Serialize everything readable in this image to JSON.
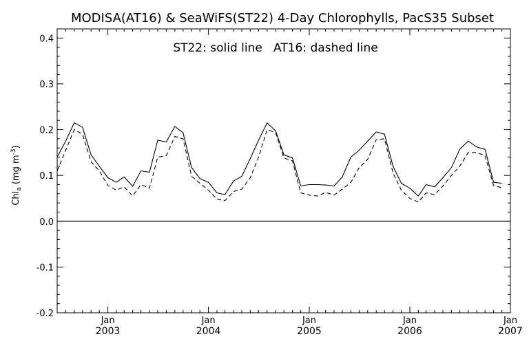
{
  "chart_data": {
    "type": "line",
    "title": "MODISA(AT16) & SeaWiFS(ST22) 4-Day Chlorophylls, PacS35 Subset",
    "annotation": "ST22: solid line   AT16: dashed line",
    "ylabel": {
      "main": "Chl",
      "sub": "a",
      "units_open": " (mg m",
      "units_sup": "-3",
      "units_close": ")"
    },
    "ylim": [
      -0.2,
      0.42
    ],
    "yticks": [
      -0.2,
      -0.1,
      0.0,
      0.1,
      0.2,
      0.3,
      0.4
    ],
    "ytick_labels": [
      "-0.2",
      "-0.1",
      "0.0",
      "0.1",
      "0.2",
      "0.3",
      "0.4"
    ],
    "xlim": [
      "2002-07-01",
      "2007-01-01"
    ],
    "xticks": [
      "2003-01-01",
      "2004-01-01",
      "2005-01-01",
      "2006-01-01",
      "2007-01-01"
    ],
    "xtick_month_labels": [
      "Jan",
      "Jan",
      "Jan",
      "Jan",
      "Jan"
    ],
    "xtick_year_labels": [
      "2003",
      "2004",
      "2005",
      "2006",
      "2007"
    ],
    "zero_line": 0.0,
    "grid": false,
    "series": [
      {
        "name": "ST22",
        "style": "solid",
        "color": "#000000",
        "points": [
          [
            "2002-07-01",
            0.14
          ],
          [
            "2002-08-01",
            0.175
          ],
          [
            "2002-09-01",
            0.215
          ],
          [
            "2002-10-01",
            0.205
          ],
          [
            "2002-11-01",
            0.145
          ],
          [
            "2002-12-01",
            0.12
          ],
          [
            "2003-01-01",
            0.095
          ],
          [
            "2003-02-01",
            0.085
          ],
          [
            "2003-03-01",
            0.097
          ],
          [
            "2003-04-01",
            0.076
          ],
          [
            "2003-05-01",
            0.11
          ],
          [
            "2003-06-01",
            0.107
          ],
          [
            "2003-07-01",
            0.177
          ],
          [
            "2003-08-01",
            0.173
          ],
          [
            "2003-09-01",
            0.207
          ],
          [
            "2003-10-01",
            0.193
          ],
          [
            "2003-11-01",
            0.117
          ],
          [
            "2003-12-01",
            0.093
          ],
          [
            "2004-01-01",
            0.085
          ],
          [
            "2004-02-01",
            0.062
          ],
          [
            "2004-03-01",
            0.058
          ],
          [
            "2004-04-01",
            0.088
          ],
          [
            "2004-05-01",
            0.098
          ],
          [
            "2004-06-01",
            0.137
          ],
          [
            "2004-07-01",
            0.177
          ],
          [
            "2004-08-01",
            0.215
          ],
          [
            "2004-09-01",
            0.197
          ],
          [
            "2004-10-01",
            0.145
          ],
          [
            "2004-11-01",
            0.138
          ],
          [
            "2004-12-01",
            0.077
          ],
          [
            "2005-01-01",
            0.08
          ],
          [
            "2005-02-01",
            0.08
          ],
          [
            "2005-03-01",
            0.079
          ],
          [
            "2005-04-01",
            0.077
          ],
          [
            "2005-05-01",
            0.097
          ],
          [
            "2005-06-01",
            0.14
          ],
          [
            "2005-07-01",
            0.155
          ],
          [
            "2005-08-01",
            0.175
          ],
          [
            "2005-09-01",
            0.195
          ],
          [
            "2005-10-01",
            0.19
          ],
          [
            "2005-11-01",
            0.12
          ],
          [
            "2005-12-01",
            0.083
          ],
          [
            "2006-01-01",
            0.072
          ],
          [
            "2006-02-01",
            0.055
          ],
          [
            "2006-03-01",
            0.08
          ],
          [
            "2006-04-01",
            0.075
          ],
          [
            "2006-05-01",
            0.095
          ],
          [
            "2006-06-01",
            0.117
          ],
          [
            "2006-07-01",
            0.157
          ],
          [
            "2006-08-01",
            0.175
          ],
          [
            "2006-09-01",
            0.162
          ],
          [
            "2006-10-01",
            0.157
          ],
          [
            "2006-11-01",
            0.085
          ],
          [
            "2006-12-01",
            0.083
          ]
        ]
      },
      {
        "name": "AT16",
        "style": "dashed",
        "color": "#000000",
        "points": [
          [
            "2002-07-01",
            0.11
          ],
          [
            "2002-08-01",
            0.155
          ],
          [
            "2002-09-01",
            0.2
          ],
          [
            "2002-10-01",
            0.19
          ],
          [
            "2002-11-01",
            0.13
          ],
          [
            "2002-12-01",
            0.11
          ],
          [
            "2003-01-01",
            0.078
          ],
          [
            "2003-02-01",
            0.068
          ],
          [
            "2003-03-01",
            0.075
          ],
          [
            "2003-04-01",
            0.055
          ],
          [
            "2003-05-01",
            0.08
          ],
          [
            "2003-06-01",
            0.072
          ],
          [
            "2003-07-01",
            0.14
          ],
          [
            "2003-08-01",
            0.143
          ],
          [
            "2003-09-01",
            0.185
          ],
          [
            "2003-10-01",
            0.18
          ],
          [
            "2003-11-01",
            0.098
          ],
          [
            "2003-12-01",
            0.083
          ],
          [
            "2004-01-01",
            0.068
          ],
          [
            "2004-02-01",
            0.048
          ],
          [
            "2004-03-01",
            0.045
          ],
          [
            "2004-04-01",
            0.065
          ],
          [
            "2004-05-01",
            0.07
          ],
          [
            "2004-06-01",
            0.095
          ],
          [
            "2004-07-01",
            0.14
          ],
          [
            "2004-08-01",
            0.2
          ],
          [
            "2004-09-01",
            0.193
          ],
          [
            "2004-10-01",
            0.138
          ],
          [
            "2004-11-01",
            0.132
          ],
          [
            "2004-12-01",
            0.062
          ],
          [
            "2005-01-01",
            0.057
          ],
          [
            "2005-02-01",
            0.055
          ],
          [
            "2005-03-01",
            0.063
          ],
          [
            "2005-04-01",
            0.057
          ],
          [
            "2005-05-01",
            0.07
          ],
          [
            "2005-06-01",
            0.085
          ],
          [
            "2005-07-01",
            0.117
          ],
          [
            "2005-08-01",
            0.135
          ],
          [
            "2005-09-01",
            0.178
          ],
          [
            "2005-10-01",
            0.18
          ],
          [
            "2005-11-01",
            0.105
          ],
          [
            "2005-12-01",
            0.068
          ],
          [
            "2006-01-01",
            0.05
          ],
          [
            "2006-02-01",
            0.042
          ],
          [
            "2006-03-01",
            0.062
          ],
          [
            "2006-04-01",
            0.058
          ],
          [
            "2006-05-01",
            0.077
          ],
          [
            "2006-06-01",
            0.1
          ],
          [
            "2006-07-01",
            0.12
          ],
          [
            "2006-08-01",
            0.15
          ],
          [
            "2006-09-01",
            0.15
          ],
          [
            "2006-10-01",
            0.143
          ],
          [
            "2006-11-01",
            0.078
          ],
          [
            "2006-12-01",
            0.073
          ]
        ]
      }
    ]
  }
}
